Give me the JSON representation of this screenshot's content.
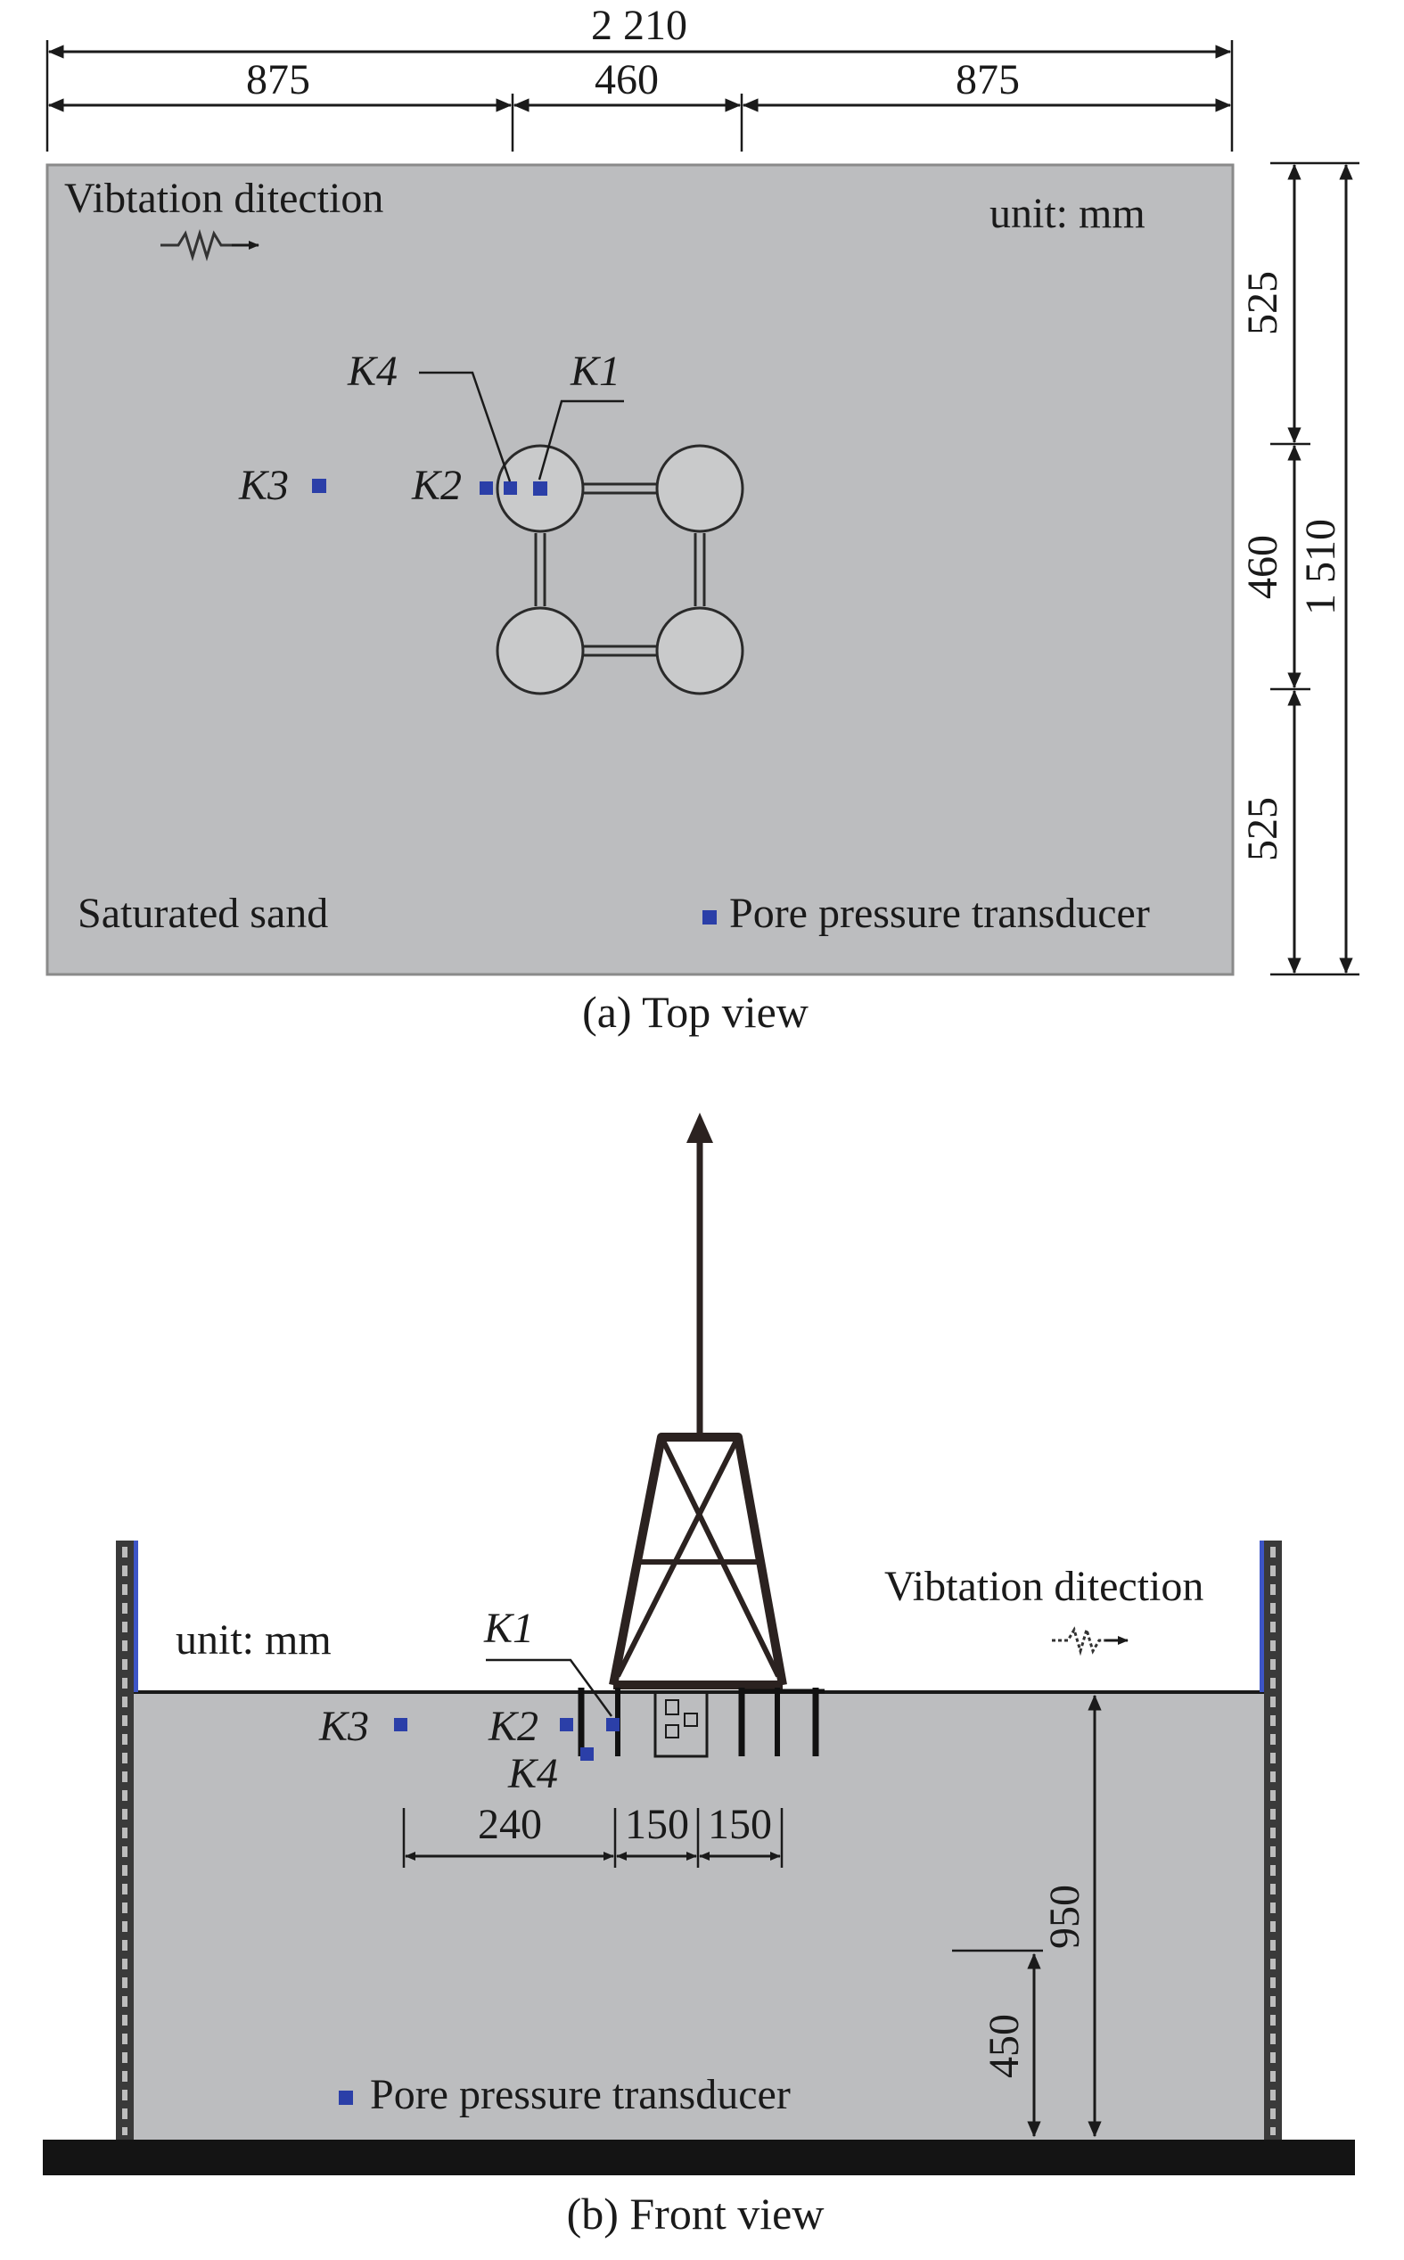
{
  "top_view": {
    "caption": "(a) Top view",
    "vibration_label": "Vibtation ditection",
    "unit_label": "unit: mm",
    "soil_label": "Saturated sand",
    "legend_label": "Pore pressure transducer",
    "dims": {
      "total_width": "2 210",
      "left": "875",
      "middle": "460",
      "right": "875",
      "right_top": "525",
      "right_mid": "460",
      "right_bottom": "525",
      "right_total": "1 510"
    },
    "sensors": [
      "K1",
      "K2",
      "K3",
      "K4"
    ],
    "colors": {
      "soil": "#bcbdbf",
      "sensor": "#2b3fa8"
    }
  },
  "front_view": {
    "caption": "(b) Front view",
    "vibration_label": "Vibtation ditection",
    "unit_label": "unit: mm",
    "legend_label": "Pore pressure transducer",
    "dims": {
      "d240": "240",
      "d150a": "150",
      "d150b": "150",
      "depth_total": "950",
      "depth_partial": "450"
    },
    "sensors": [
      "K1",
      "K2",
      "K3",
      "K4"
    ],
    "colors": {
      "soil": "#bcbdbf",
      "base": "#141414"
    }
  }
}
